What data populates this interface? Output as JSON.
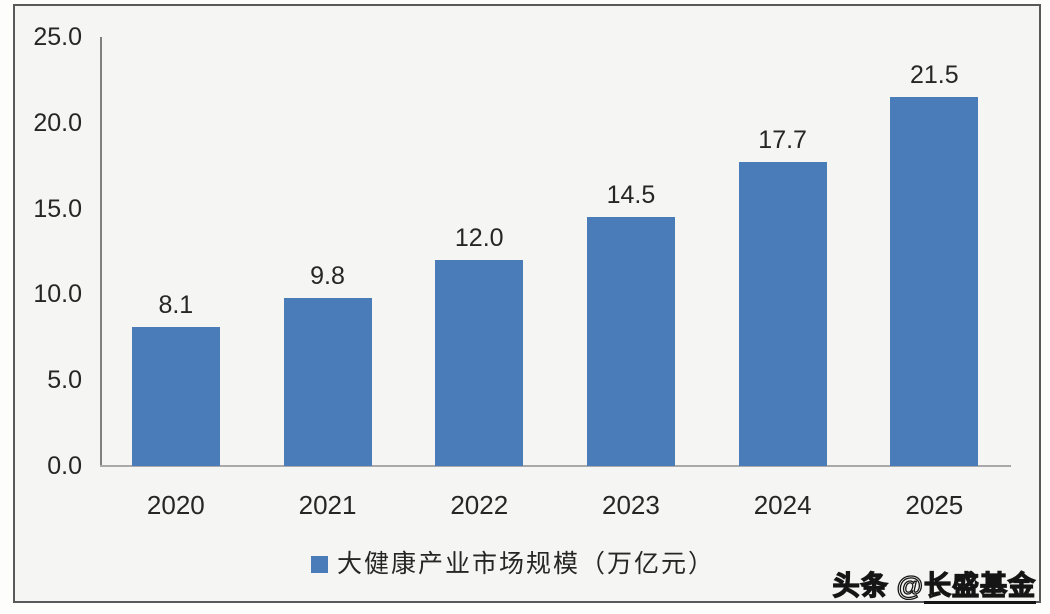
{
  "chart_data": {
    "type": "bar",
    "categories": [
      "2020",
      "2021",
      "2022",
      "2023",
      "2024",
      "2025"
    ],
    "values": [
      8.1,
      9.8,
      12.0,
      14.5,
      17.7,
      21.5
    ],
    "value_labels": [
      "8.1",
      "9.8",
      "12.0",
      "14.5",
      "17.7",
      "21.5"
    ],
    "title": "",
    "xlabel": "",
    "ylabel": "",
    "ylim": [
      0,
      25
    ],
    "ytick_step": 5,
    "yticks": [
      "25.0",
      "20.0",
      "15.0",
      "10.0",
      "5.0",
      "0.0"
    ],
    "grid": false,
    "legend": {
      "label": "大健康产业市场规模（万亿元）",
      "position": "bottom"
    },
    "bar_color": "#4b7cba",
    "axis_color": "#808080",
    "text_color": "#262626"
  },
  "watermark": {
    "site": "头条",
    "at": "@",
    "account": "长盛基金"
  }
}
